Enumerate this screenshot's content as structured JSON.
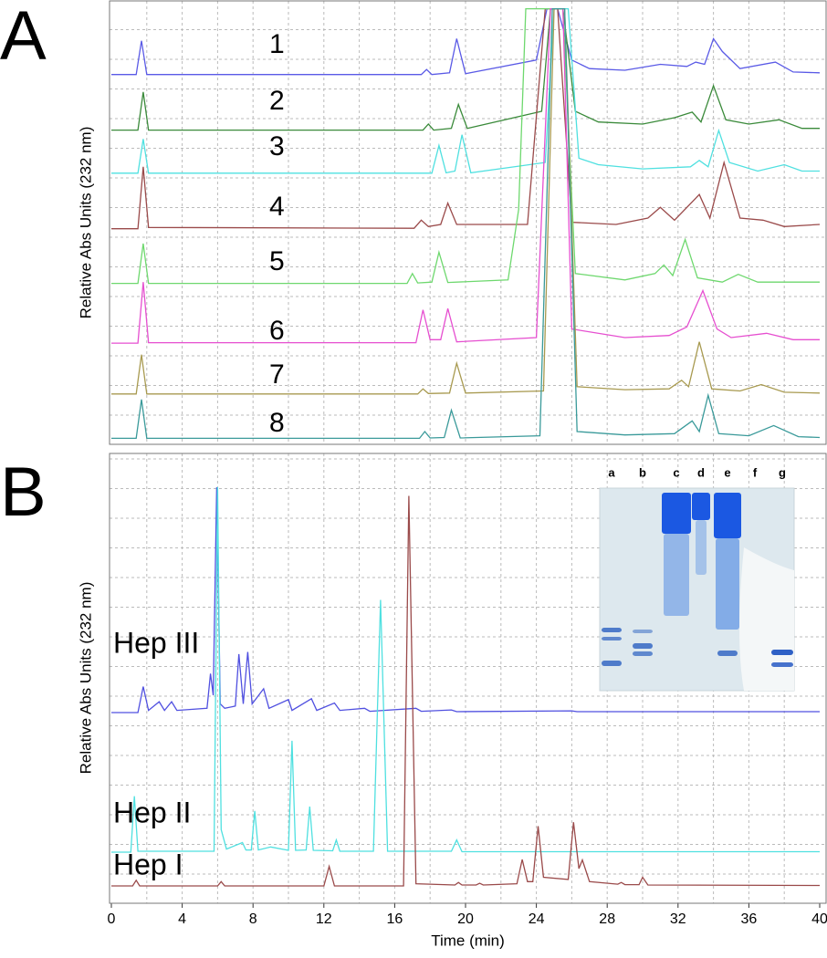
{
  "chart_data": [
    {
      "type": "line",
      "label": "A",
      "ylabel": "Relative Abs Units (232 nm)",
      "xlim": [
        0,
        40
      ],
      "ylim": [
        0,
        100
      ],
      "grid": true,
      "series": [
        {
          "name": "1",
          "color": "#5a5ae6",
          "x": [
            0,
            1.4,
            1.7,
            2.0,
            17.5,
            17.8,
            18.1,
            19.1,
            19.5,
            20.0,
            24.0,
            24.6,
            25.2,
            26.0,
            27,
            29,
            31,
            32.5,
            33.0,
            33.5,
            34.0,
            34.5,
            35.5,
            37.5,
            38.5,
            40
          ],
          "values": [
            86.6,
            86.6,
            94.5,
            86.6,
            86.6,
            87.8,
            86.6,
            87,
            95,
            86.8,
            90,
            102,
            102,
            90,
            88,
            87.6,
            89,
            88.5,
            89.5,
            89,
            95,
            92,
            88,
            89.5,
            87.2,
            87
          ]
        },
        {
          "name": "2",
          "color": "#3a8a3a",
          "x": [
            0,
            1.5,
            1.8,
            2.1,
            17.6,
            17.9,
            18.2,
            19.2,
            19.6,
            20.1,
            24.3,
            24.8,
            25.5,
            26.2,
            27.5,
            30,
            31.8,
            32.8,
            33.3,
            34.0,
            34.7,
            36,
            37.7,
            39,
            40
          ],
          "values": [
            73.6,
            73.6,
            82.5,
            73.6,
            73.6,
            75,
            73.6,
            74,
            79.6,
            74,
            78,
            102,
            102,
            78,
            75.5,
            75,
            76.5,
            77.8,
            75.5,
            84,
            76,
            75,
            76,
            74,
            74
          ]
        },
        {
          "name": "3",
          "color": "#4fe0e0",
          "x": [
            0,
            1.5,
            1.8,
            2.1,
            18.1,
            18.5,
            18.9,
            19.4,
            19.8,
            20.3,
            24.5,
            25.0,
            25.8,
            26.4,
            27.5,
            30,
            32.7,
            33.2,
            33.7,
            34.3,
            34.9,
            36.5,
            38,
            39,
            40
          ],
          "values": [
            63.5,
            63.5,
            71.5,
            63.5,
            63.5,
            70,
            63.6,
            64,
            72.5,
            63.6,
            66,
            102,
            102,
            67,
            65.5,
            64.5,
            65,
            66.5,
            65,
            73.5,
            66,
            64,
            65.5,
            64,
            64
          ]
        },
        {
          "name": "4",
          "color": "#9a4a4a",
          "x": [
            0,
            1.5,
            1.8,
            2.1,
            17.1,
            17.5,
            17.9,
            18.6,
            19.0,
            19.5,
            23.5,
            24.5,
            25.2,
            26.0,
            28.5,
            30.3,
            31.0,
            31.8,
            33.2,
            33.8,
            34.6,
            35.5,
            36.8,
            38,
            40
          ],
          "values": [
            50.5,
            50.5,
            65,
            50.8,
            50.6,
            52.5,
            51,
            51.5,
            56.5,
            51.5,
            51.5,
            102,
            102,
            52,
            51.5,
            53,
            55.5,
            52.5,
            58.5,
            53,
            66,
            53,
            52.5,
            51,
            51.5
          ]
        },
        {
          "name": "5",
          "color": "#6ed86e",
          "x": [
            0,
            1.5,
            1.8,
            2.1,
            16.7,
            17.0,
            17.3,
            18.1,
            18.5,
            19.0,
            22.4,
            23.0,
            23.4,
            25.5,
            26.2,
            29,
            30.7,
            31.2,
            31.7,
            32.4,
            33.1,
            34.5,
            35.4,
            36.5,
            40
          ],
          "values": [
            37.7,
            37.7,
            47,
            37.7,
            37.7,
            40,
            37.8,
            38,
            45,
            37.9,
            38.5,
            55,
            102,
            102,
            40,
            38.5,
            40,
            42,
            39.5,
            48,
            39,
            38,
            39.8,
            38,
            38
          ]
        },
        {
          "name": "6",
          "color": "#e64fd0",
          "x": [
            0,
            1.5,
            1.8,
            2.1,
            17.2,
            17.6,
            18.0,
            18.6,
            19.0,
            19.5,
            24.0,
            24.8,
            25.5,
            26.0,
            29,
            31.5,
            32.5,
            33.4,
            34.2,
            35.0,
            37.0,
            38.5,
            40
          ],
          "values": [
            23.7,
            23.7,
            38,
            23.8,
            23.8,
            31.5,
            24.5,
            24.5,
            31.8,
            24,
            25,
            102,
            102,
            27,
            25,
            25.5,
            27.5,
            36,
            27,
            25,
            26,
            24.5,
            24.5
          ]
        },
        {
          "name": "7",
          "color": "#a89a50",
          "x": [
            0,
            1.4,
            1.7,
            2.0,
            17.3,
            17.6,
            17.9,
            19.1,
            19.5,
            20.0,
            24.4,
            25.0,
            25.6,
            26.3,
            29,
            31.5,
            32.2,
            32.6,
            33.2,
            33.9,
            35.5,
            36.7,
            38,
            40
          ],
          "values": [
            11.8,
            11.8,
            21,
            11.8,
            11.8,
            13,
            11.9,
            12,
            19,
            12,
            12.5,
            102,
            102,
            13.5,
            12.8,
            13,
            15,
            13.5,
            24,
            13,
            12.5,
            14,
            12.2,
            12
          ]
        },
        {
          "name": "8",
          "color": "#3a9a9a",
          "x": [
            0,
            1.4,
            1.7,
            2.0,
            17.4,
            17.7,
            18.0,
            18.8,
            19.2,
            19.7,
            24.2,
            24.9,
            25.6,
            26.3,
            29,
            31.8,
            32.8,
            33.2,
            33.7,
            34.3,
            36,
            37.4,
            38.8,
            40
          ],
          "values": [
            1.4,
            1.4,
            10.5,
            1.4,
            1.4,
            3,
            1.5,
            1.6,
            8,
            1.5,
            2,
            102,
            102,
            3,
            2.2,
            2.5,
            5.5,
            3,
            11.5,
            2.5,
            2,
            4.4,
            1.8,
            1.6
          ]
        }
      ]
    },
    {
      "type": "line",
      "label": "B",
      "ylabel": "Relative Abs Units (232 nm)",
      "xlabel": "Time (min)",
      "xlim": [
        0,
        40
      ],
      "xticks": [
        0,
        4,
        8,
        12,
        16,
        20,
        24,
        28,
        32,
        36,
        40
      ],
      "ylim": [
        0,
        100
      ],
      "grid": true,
      "series": [
        {
          "name": "Hep III",
          "color": "#5050e0",
          "x": [
            0,
            1.5,
            1.8,
            2.1,
            2.7,
            3.0,
            3.4,
            3.7,
            5.4,
            5.6,
            5.75,
            5.95,
            6.15,
            6.4,
            7.0,
            7.2,
            7.45,
            7.7,
            7.95,
            8.6,
            8.9,
            10.0,
            10.2,
            11.3,
            11.6,
            12.6,
            12.9,
            14.3,
            14.6,
            17.2,
            17.5,
            19.2,
            19.5,
            26,
            26.3,
            40
          ],
          "values": [
            44,
            44,
            50,
            44.5,
            46.5,
            44.5,
            46.5,
            44.5,
            45,
            53,
            48,
            96,
            46,
            45,
            45.5,
            57.5,
            46,
            58,
            46,
            49.5,
            45,
            47,
            44.5,
            47.2,
            44.5,
            46.2,
            44.5,
            45,
            44.3,
            45,
            44.3,
            44.6,
            44.2,
            44.4,
            44.2,
            44.2
          ]
        },
        {
          "name": "Hep II",
          "color": "#4fe0e0",
          "x": [
            0,
            1.1,
            1.3,
            1.5,
            5.8,
            6.0,
            6.2,
            6.5,
            7.4,
            7.6,
            7.9,
            8.1,
            8.3,
            9.0,
            10.0,
            10.2,
            10.4,
            11.0,
            11.2,
            11.4,
            12.5,
            12.7,
            12.9,
            14.8,
            15.2,
            15.6,
            19.2,
            19.5,
            19.8,
            40
          ],
          "values": [
            11.8,
            11.8,
            24.7,
            12,
            12,
            96,
            17,
            12.5,
            14,
            12.3,
            12.3,
            21.3,
            12.3,
            13,
            12.2,
            37.5,
            12.2,
            12.3,
            22.3,
            12.2,
            12.1,
            14.6,
            12,
            12,
            70,
            12,
            12,
            14.6,
            11.9,
            11.9
          ]
        },
        {
          "name": "Hep I",
          "color": "#9a4a4a",
          "x": [
            0,
            1.2,
            1.4,
            1.6,
            6.0,
            6.2,
            6.4,
            12.0,
            12.3,
            12.6,
            16.5,
            16.8,
            17.2,
            19.4,
            19.6,
            19.8,
            20.6,
            20.8,
            21.0,
            22.9,
            23.2,
            23.5,
            23.8,
            24.1,
            24.4,
            25.8,
            26.1,
            26.4,
            26.6,
            27.0,
            28.6,
            28.8,
            29.0,
            29.8,
            30.0,
            30.3,
            40
          ],
          "values": [
            4,
            4,
            5.3,
            4,
            4,
            5,
            4,
            4,
            8.5,
            4,
            4,
            94,
            4.5,
            4.2,
            4.8,
            4.2,
            4.2,
            4.6,
            4.2,
            4.5,
            10.1,
            5,
            5,
            17.8,
            6,
            5.5,
            18.7,
            8,
            10,
            5,
            4.4,
            4.8,
            4.3,
            4.3,
            6,
            4.2,
            4.1
          ]
        }
      ]
    }
  ],
  "inset": {
    "lanes": [
      "a",
      "b",
      "c",
      "d",
      "e",
      "f",
      "g"
    ]
  }
}
